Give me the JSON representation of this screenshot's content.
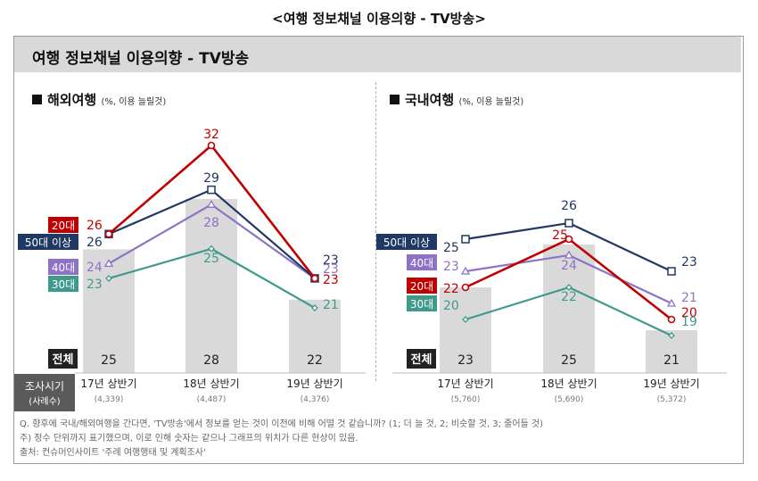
{
  "page_title": "<여행 정보채널 이용의향 - TV방송>",
  "header_title": "여행 정보채널 이용의향 - TV방송",
  "row_labels": {
    "total": "전체",
    "survey_period": "조사시기",
    "sample_count": "(사례수)"
  },
  "notes": [
    "Q. 향후에 국내/해외여행을 간다면, 'TV방송'에서 정보를 얻는 것이 이전에 비해 어떨 것 같습니까? (1; 더 늘 것, 2; 비슷할 것, 3; 줄어들 것)",
    "주) 정수 단위까지 표기했으며, 이로 인해 숫자는 같으나 그래프의 위치가 다른 현상이 있음.",
    "출처: 컨슈머인사이트 '주례 여행행태 및 계획조사'"
  ],
  "colors": {
    "20s": "#c00000",
    "50plus": "#1f3864",
    "40s": "#8e72c6",
    "30s": "#3f9a8c",
    "bar": "#d9d9d9"
  },
  "chart_data": [
    {
      "type": "bar",
      "title": "해외여행",
      "subtitle": "(%, 이용 늘릴것)",
      "categories": [
        "17년 상반기",
        "18년 상반기",
        "19년 상반기"
      ],
      "sample_sizes": [
        "(4,339)",
        "(4,487)",
        "(4,376)"
      ],
      "bar_series": {
        "name": "전체",
        "values": [
          25,
          28,
          22
        ]
      },
      "series": [
        {
          "name": "20대",
          "key": "20s",
          "values": [
            26,
            32,
            23
          ]
        },
        {
          "name": "50대 이상",
          "key": "50plus",
          "values": [
            26,
            29,
            23
          ]
        },
        {
          "name": "40대",
          "key": "40s",
          "values": [
            24,
            28,
            23
          ]
        },
        {
          "name": "30대",
          "key": "30s",
          "values": [
            23,
            25,
            21
          ]
        }
      ]
    },
    {
      "type": "bar",
      "title": "국내여행",
      "subtitle": "(%, 이용 늘릴것)",
      "categories": [
        "17년 상반기",
        "18년 상반기",
        "19년 상반기"
      ],
      "sample_sizes": [
        "(5,760)",
        "(5,690)",
        "(5,372)"
      ],
      "bar_series": {
        "name": "전체",
        "values": [
          23,
          25,
          21
        ]
      },
      "series": [
        {
          "name": "50대 이상",
          "key": "50plus",
          "values": [
            25,
            26,
            23
          ]
        },
        {
          "name": "40대",
          "key": "40s",
          "values": [
            23,
            24,
            21
          ]
        },
        {
          "name": "20대",
          "key": "20s",
          "values": [
            22,
            25,
            20
          ]
        },
        {
          "name": "30대",
          "key": "30s",
          "values": [
            20,
            22,
            19
          ]
        }
      ]
    }
  ]
}
